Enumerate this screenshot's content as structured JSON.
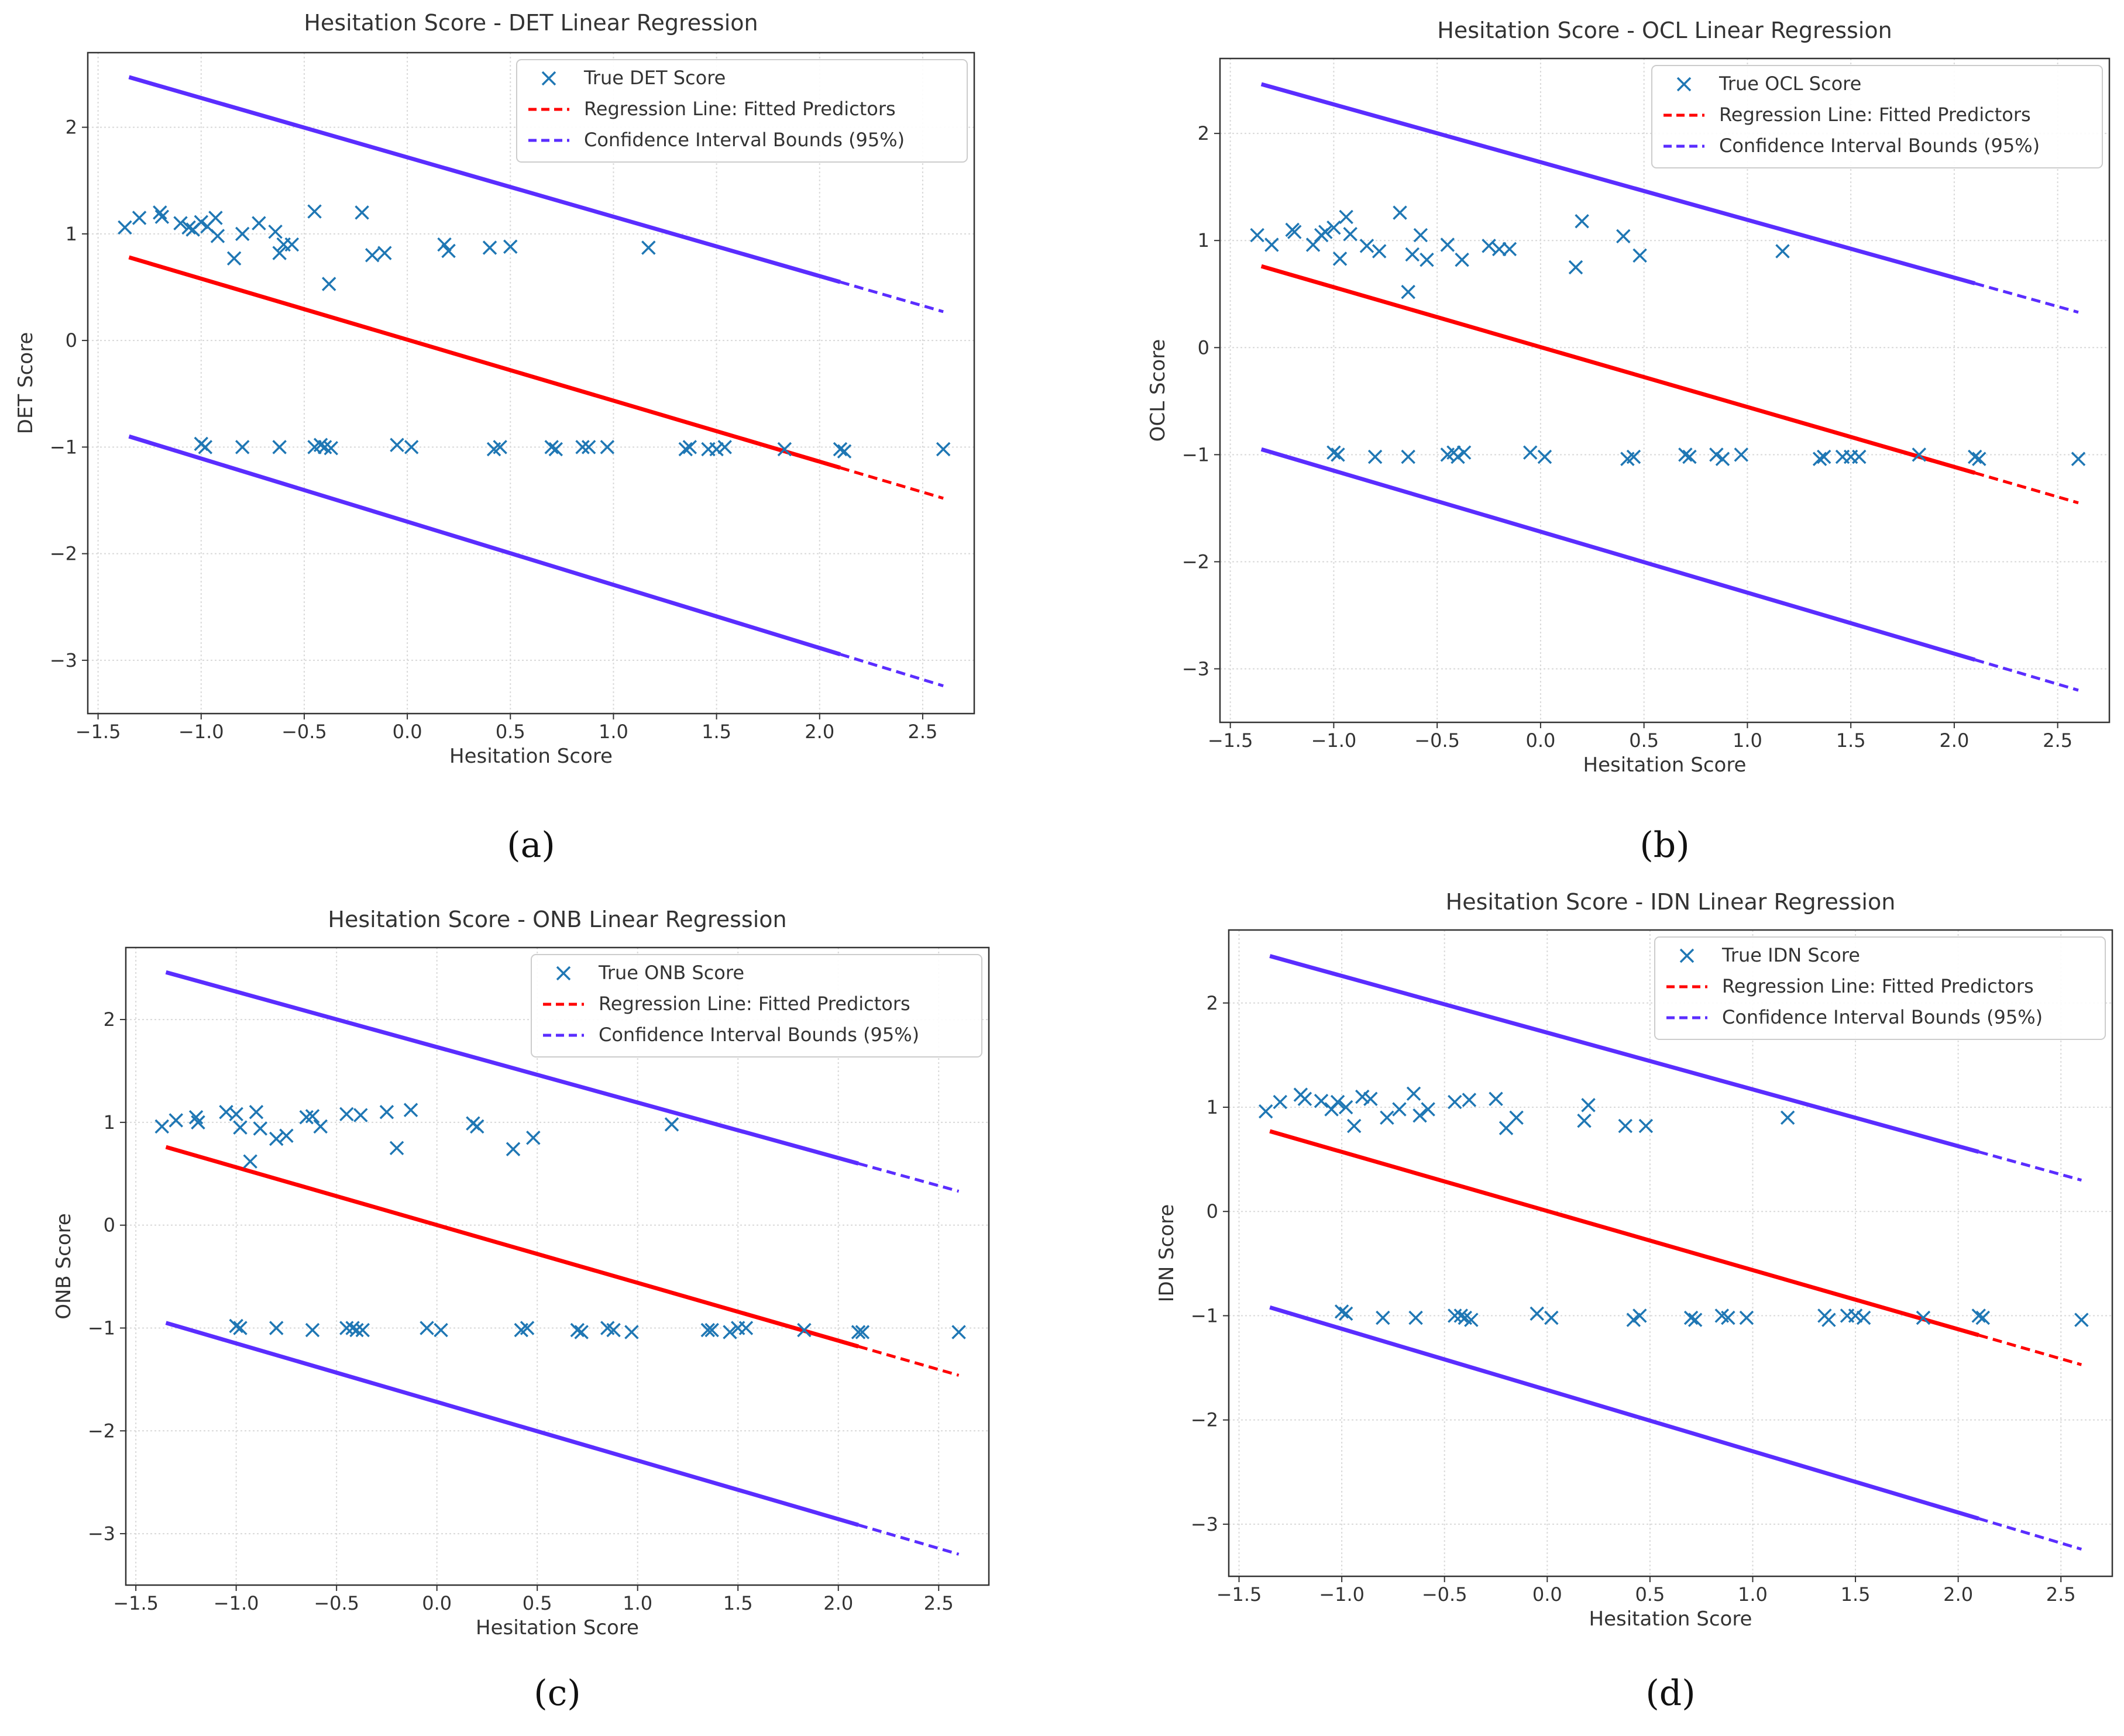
{
  "colors": {
    "scatter": "#1f77b4",
    "regression": "#ff0000",
    "confidence": "#5a2dff",
    "grid": "#d9d9d9",
    "axis": "#333333"
  },
  "chart_data": [
    {
      "type": "scatter",
      "caption": "(a)",
      "title": "Hesitation Score - DET Linear Regression",
      "xlabel": "Hesitation Score",
      "ylabel": "DET Score",
      "xlim": [
        -1.55,
        2.75
      ],
      "ylim": [
        -3.5,
        2.7
      ],
      "xticks": [
        -1.5,
        -1.0,
        -0.5,
        0.0,
        0.5,
        1.0,
        1.5,
        2.0,
        2.5
      ],
      "xtick_labels": [
        "−1.5",
        "−1.0",
        "−0.5",
        "0.0",
        "0.5",
        "1.0",
        "1.5",
        "2.0",
        "2.5"
      ],
      "yticks": [
        -3,
        -2,
        -1,
        0,
        1,
        2
      ],
      "ytick_labels": [
        "−3",
        "−2",
        "−1",
        "0",
        "1",
        "2"
      ],
      "grid": true,
      "legend": [
        "True DET Score",
        "Regression Line: Fitted Predictors",
        "Confidence Interval Bounds (95%)"
      ],
      "legend_position": "top-right",
      "series": [
        {
          "name": "True DET Score",
          "kind": "scatter",
          "marker": "x",
          "x": [
            -1.37,
            -1.3,
            -1.2,
            -1.19,
            -1.1,
            -1.06,
            -1.04,
            -1.0,
            -0.97,
            -0.93,
            -0.92,
            -0.84,
            -0.8,
            -0.72,
            -0.64,
            -0.62,
            -0.6,
            -0.56,
            -0.45,
            -0.38,
            -0.22,
            -0.17,
            -0.11,
            0.18,
            0.2,
            0.4,
            0.5,
            1.17,
            -1.0,
            -0.98,
            -0.8,
            -0.62,
            -0.45,
            -0.42,
            -0.4,
            -0.37,
            -0.05,
            0.02,
            0.42,
            0.45,
            0.7,
            0.72,
            0.85,
            0.88,
            0.97,
            1.35,
            1.37,
            1.46,
            1.5,
            1.54,
            1.83,
            2.1,
            2.12,
            2.6
          ],
          "y": [
            1.06,
            1.15,
            1.2,
            1.16,
            1.1,
            1.06,
            1.04,
            1.11,
            1.07,
            1.15,
            0.98,
            0.77,
            1.0,
            1.1,
            1.02,
            0.82,
            0.9,
            0.9,
            1.21,
            0.53,
            1.2,
            0.8,
            0.82,
            0.9,
            0.84,
            0.87,
            0.88,
            0.87,
            -0.97,
            -1.0,
            -1.0,
            -1.0,
            -1.0,
            -0.98,
            -1.0,
            -1.01,
            -0.98,
            -1.0,
            -1.02,
            -1.0,
            -1.0,
            -1.02,
            -1.0,
            -1.0,
            -1.0,
            -1.02,
            -1.0,
            -1.02,
            -1.02,
            -1.0,
            -1.02,
            -1.02,
            -1.04,
            -1.02
          ]
        },
        {
          "name": "Regression Line: Fitted Predictors",
          "kind": "line",
          "x": [
            -1.35,
            2.6
          ],
          "y": [
            0.78,
            -1.48
          ]
        },
        {
          "name": "Confidence Interval Bounds (95%) upper",
          "kind": "line",
          "x": [
            -1.35,
            2.6
          ],
          "y": [
            2.47,
            0.27
          ]
        },
        {
          "name": "Confidence Interval Bounds (95%) lower",
          "kind": "line",
          "x": [
            -1.35,
            2.6
          ],
          "y": [
            -0.9,
            -3.24
          ]
        }
      ]
    },
    {
      "type": "scatter",
      "caption": "(b)",
      "title": "Hesitation Score - OCL Linear Regression",
      "xlabel": "Hesitation Score",
      "ylabel": "OCL Score",
      "xlim": [
        -1.55,
        2.75
      ],
      "ylim": [
        -3.5,
        2.7
      ],
      "xticks": [
        -1.5,
        -1.0,
        -0.5,
        0.0,
        0.5,
        1.0,
        1.5,
        2.0,
        2.5
      ],
      "xtick_labels": [
        "−1.5",
        "−1.0",
        "−0.5",
        "0.0",
        "0.5",
        "1.0",
        "1.5",
        "2.0",
        "2.5"
      ],
      "yticks": [
        -3,
        -2,
        -1,
        0,
        1,
        2
      ],
      "ytick_labels": [
        "−3",
        "−2",
        "−1",
        "0",
        "1",
        "2"
      ],
      "grid": true,
      "legend": [
        "True OCL Score",
        "Regression Line: Fitted Predictors",
        "Confidence Interval Bounds (95%)"
      ],
      "legend_position": "top-right",
      "series": [
        {
          "name": "True OCL Score",
          "kind": "scatter",
          "marker": "x",
          "x": [
            -1.37,
            -1.3,
            -1.2,
            -1.19,
            -1.1,
            -1.06,
            -1.04,
            -1.0,
            -0.97,
            -0.94,
            -0.92,
            -0.84,
            -0.78,
            -0.68,
            -0.64,
            -0.62,
            -0.58,
            -0.55,
            -0.45,
            -0.38,
            -0.25,
            -0.2,
            -0.15,
            0.17,
            0.2,
            0.4,
            0.48,
            1.17,
            -1.0,
            -0.98,
            -0.8,
            -0.64,
            -0.45,
            -0.42,
            -0.4,
            -0.37,
            -0.05,
            0.02,
            0.42,
            0.45,
            0.7,
            0.72,
            0.85,
            0.88,
            0.97,
            1.35,
            1.37,
            1.46,
            1.5,
            1.54,
            1.83,
            2.1,
            2.12,
            2.6
          ],
          "y": [
            1.05,
            0.96,
            1.1,
            1.08,
            0.96,
            1.05,
            1.08,
            1.12,
            0.83,
            1.22,
            1.06,
            0.95,
            0.9,
            1.26,
            0.52,
            0.87,
            1.05,
            0.82,
            0.96,
            0.82,
            0.95,
            0.92,
            0.92,
            0.75,
            1.18,
            1.04,
            0.86,
            0.9,
            -0.98,
            -1.0,
            -1.02,
            -1.02,
            -1.0,
            -0.98,
            -1.02,
            -0.98,
            -0.98,
            -1.02,
            -1.04,
            -1.02,
            -1.0,
            -1.02,
            -1.0,
            -1.04,
            -1.0,
            -1.04,
            -1.02,
            -1.02,
            -1.02,
            -1.02,
            -1.0,
            -1.02,
            -1.04,
            -1.04
          ]
        },
        {
          "name": "Regression Line: Fitted Predictors",
          "kind": "line",
          "x": [
            -1.35,
            2.6
          ],
          "y": [
            0.76,
            -1.45
          ]
        },
        {
          "name": "Confidence Interval Bounds (95%) upper",
          "kind": "line",
          "x": [
            -1.35,
            2.6
          ],
          "y": [
            2.46,
            0.33
          ]
        },
        {
          "name": "Confidence Interval Bounds (95%) lower",
          "kind": "line",
          "x": [
            -1.35,
            2.6
          ],
          "y": [
            -0.95,
            -3.2
          ]
        }
      ]
    },
    {
      "type": "scatter",
      "caption": "(c)",
      "title": "Hesitation Score - ONB Linear Regression",
      "xlabel": "Hesitation Score",
      "ylabel": "ONB Score",
      "xlim": [
        -1.55,
        2.75
      ],
      "ylim": [
        -3.5,
        2.7
      ],
      "xticks": [
        -1.5,
        -1.0,
        -0.5,
        0.0,
        0.5,
        1.0,
        1.5,
        2.0,
        2.5
      ],
      "xtick_labels": [
        "−1.5",
        "−1.0",
        "−0.5",
        "0.0",
        "0.5",
        "1.0",
        "1.5",
        "2.0",
        "2.5"
      ],
      "yticks": [
        -3,
        -2,
        -1,
        0,
        1,
        2
      ],
      "ytick_labels": [
        "−3",
        "−2",
        "−1",
        "0",
        "1",
        "2"
      ],
      "grid": true,
      "legend": [
        "True ONB Score",
        "Regression Line: Fitted Predictors",
        "Confidence Interval Bounds (95%)"
      ],
      "legend_position": "top-right",
      "series": [
        {
          "name": "True ONB Score",
          "kind": "scatter",
          "marker": "x",
          "x": [
            -1.37,
            -1.3,
            -1.2,
            -1.19,
            -1.05,
            -1.0,
            -0.98,
            -0.93,
            -0.9,
            -0.88,
            -0.8,
            -0.75,
            -0.65,
            -0.62,
            -0.58,
            -0.45,
            -0.38,
            -0.25,
            -0.2,
            -0.13,
            0.18,
            0.2,
            0.38,
            0.48,
            1.17,
            -1.0,
            -0.98,
            -0.8,
            -0.62,
            -0.45,
            -0.42,
            -0.4,
            -0.37,
            -0.05,
            0.02,
            0.42,
            0.45,
            0.7,
            0.72,
            0.85,
            0.88,
            0.97,
            1.35,
            1.37,
            1.46,
            1.5,
            1.54,
            1.83,
            2.1,
            2.12,
            2.6
          ],
          "y": [
            0.96,
            1.02,
            1.05,
            1.0,
            1.1,
            1.08,
            0.95,
            0.62,
            1.1,
            0.94,
            0.84,
            0.87,
            1.05,
            1.06,
            0.96,
            1.08,
            1.07,
            1.1,
            0.75,
            1.12,
            0.99,
            0.96,
            0.74,
            0.85,
            0.98,
            -0.98,
            -1.0,
            -1.0,
            -1.02,
            -1.0,
            -1.0,
            -1.02,
            -1.02,
            -1.0,
            -1.02,
            -1.02,
            -1.0,
            -1.02,
            -1.04,
            -1.0,
            -1.02,
            -1.04,
            -1.02,
            -1.02,
            -1.04,
            -1.0,
            -1.0,
            -1.02,
            -1.04,
            -1.04,
            -1.04
          ]
        },
        {
          "name": "Regression Line: Fitted Predictors",
          "kind": "line",
          "x": [
            -1.35,
            2.6
          ],
          "y": [
            0.76,
            -1.46
          ]
        },
        {
          "name": "Confidence Interval Bounds (95%) upper",
          "kind": "line",
          "x": [
            -1.35,
            2.6
          ],
          "y": [
            2.46,
            0.33
          ]
        },
        {
          "name": "Confidence Interval Bounds (95%) lower",
          "kind": "line",
          "x": [
            -1.35,
            2.6
          ],
          "y": [
            -0.95,
            -3.2
          ]
        }
      ]
    },
    {
      "type": "scatter",
      "caption": "(d)",
      "title": "Hesitation Score - IDN Linear Regression",
      "xlabel": "Hesitation Score",
      "ylabel": "IDN Score",
      "xlim": [
        -1.55,
        2.75
      ],
      "ylim": [
        -3.5,
        2.7
      ],
      "xticks": [
        -1.5,
        -1.0,
        -0.5,
        0.0,
        0.5,
        1.0,
        1.5,
        2.0,
        2.5
      ],
      "xtick_labels": [
        "−1.5",
        "−1.0",
        "−0.5",
        "0.0",
        "0.5",
        "1.0",
        "1.5",
        "2.0",
        "2.5"
      ],
      "yticks": [
        -3,
        -2,
        -1,
        0,
        1,
        2
      ],
      "ytick_labels": [
        "−3",
        "−2",
        "−1",
        "0",
        "1",
        "2"
      ],
      "grid": true,
      "legend": [
        "True IDN Score",
        "Regression Line: Fitted Predictors",
        "Confidence Interval Bounds (95%)"
      ],
      "legend_position": "top-right",
      "series": [
        {
          "name": "True IDN Score",
          "kind": "scatter",
          "marker": "x",
          "x": [
            -1.37,
            -1.3,
            -1.2,
            -1.18,
            -1.1,
            -1.05,
            -1.02,
            -0.98,
            -0.94,
            -0.9,
            -0.86,
            -0.78,
            -0.72,
            -0.65,
            -0.62,
            -0.58,
            -0.45,
            -0.38,
            -0.25,
            -0.2,
            -0.15,
            0.18,
            0.2,
            0.38,
            0.48,
            1.17,
            -1.0,
            -0.98,
            -0.8,
            -0.64,
            -0.45,
            -0.42,
            -0.4,
            -0.37,
            -0.05,
            0.02,
            0.42,
            0.45,
            0.7,
            0.72,
            0.85,
            0.88,
            0.97,
            1.35,
            1.37,
            1.46,
            1.5,
            1.54,
            1.83,
            2.1,
            2.12,
            2.6
          ],
          "y": [
            0.96,
            1.05,
            1.12,
            1.08,
            1.06,
            0.98,
            1.05,
            1.0,
            0.82,
            1.1,
            1.08,
            0.9,
            0.98,
            1.13,
            0.92,
            0.98,
            1.05,
            1.07,
            1.08,
            0.8,
            0.9,
            0.87,
            1.02,
            0.82,
            0.82,
            0.9,
            -0.96,
            -0.98,
            -1.02,
            -1.02,
            -1.0,
            -1.0,
            -1.02,
            -1.04,
            -0.98,
            -1.02,
            -1.04,
            -1.0,
            -1.02,
            -1.04,
            -1.0,
            -1.02,
            -1.02,
            -1.0,
            -1.04,
            -1.0,
            -1.0,
            -1.02,
            -1.02,
            -1.0,
            -1.02,
            -1.04
          ]
        },
        {
          "name": "Regression Line: Fitted Predictors",
          "kind": "line",
          "x": [
            -1.35,
            2.6
          ],
          "y": [
            0.77,
            -1.47
          ]
        },
        {
          "name": "Confidence Interval Bounds (95%) upper",
          "kind": "line",
          "x": [
            -1.35,
            2.6
          ],
          "y": [
            2.45,
            0.3
          ]
        },
        {
          "name": "Confidence Interval Bounds (95%) lower",
          "kind": "line",
          "x": [
            -1.35,
            2.6
          ],
          "y": [
            -0.92,
            -3.24
          ]
        }
      ]
    }
  ]
}
